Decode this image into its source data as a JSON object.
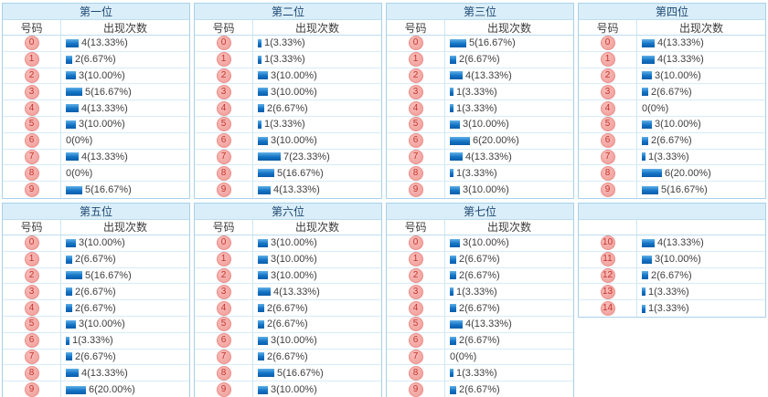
{
  "headers": {
    "number": "号码",
    "count": "出现次数"
  },
  "value_label_format": "count(percent)",
  "colors": {
    "title_band": "#daeef9",
    "title_text": "#1d4874",
    "table_border": "#a8d2ec",
    "row_line": "#d7ebf8",
    "bar_top": "#5fb0e8",
    "bar_bottom": "#0a5dab",
    "badge_bg": "#f5a9a5",
    "badge_text": "#c5322e",
    "count_text": "#3f3f3f"
  },
  "chart_data": [
    {
      "type": "bar",
      "orientation": "horizontal",
      "title": "第一位",
      "number_header": "号码",
      "count_header": "出现次数",
      "categories": [
        "0",
        "1",
        "2",
        "3",
        "4",
        "5",
        "6",
        "7",
        "8",
        "9"
      ],
      "values": [
        4,
        2,
        3,
        5,
        4,
        3,
        0,
        4,
        0,
        5
      ],
      "labels": [
        "4(13.33%)",
        "2(6.67%)",
        "3(10.00%)",
        "5(16.67%)",
        "4(13.33%)",
        "3(10.00%)",
        "0(0%)",
        "4(13.33%)",
        "0(0%)",
        "5(16.67%)"
      ]
    },
    {
      "type": "bar",
      "orientation": "horizontal",
      "title": "第二位",
      "number_header": "号码",
      "count_header": "出现次数",
      "categories": [
        "0",
        "1",
        "2",
        "3",
        "4",
        "5",
        "6",
        "7",
        "8",
        "9"
      ],
      "values": [
        1,
        1,
        3,
        3,
        2,
        1,
        3,
        7,
        5,
        4
      ],
      "labels": [
        "1(3.33%)",
        "1(3.33%)",
        "3(10.00%)",
        "3(10.00%)",
        "2(6.67%)",
        "1(3.33%)",
        "3(10.00%)",
        "7(23.33%)",
        "5(16.67%)",
        "4(13.33%)"
      ]
    },
    {
      "type": "bar",
      "orientation": "horizontal",
      "title": "第三位",
      "number_header": "号码",
      "count_header": "出现次数",
      "categories": [
        "0",
        "1",
        "2",
        "3",
        "4",
        "5",
        "6",
        "7",
        "8",
        "9"
      ],
      "values": [
        5,
        2,
        4,
        1,
        1,
        3,
        6,
        4,
        1,
        3
      ],
      "labels": [
        "5(16.67%)",
        "2(6.67%)",
        "4(13.33%)",
        "1(3.33%)",
        "1(3.33%)",
        "3(10.00%)",
        "6(20.00%)",
        "4(13.33%)",
        "1(3.33%)",
        "3(10.00%)"
      ]
    },
    {
      "type": "bar",
      "orientation": "horizontal",
      "title": "第四位",
      "number_header": "号码",
      "count_header": "出现次数",
      "categories": [
        "0",
        "1",
        "2",
        "3",
        "4",
        "5",
        "6",
        "7",
        "8",
        "9"
      ],
      "values": [
        4,
        4,
        3,
        2,
        0,
        3,
        2,
        1,
        6,
        5
      ],
      "labels": [
        "4(13.33%)",
        "4(13.33%)",
        "3(10.00%)",
        "2(6.67%)",
        "0(0%)",
        "3(10.00%)",
        "2(6.67%)",
        "1(3.33%)",
        "6(20.00%)",
        "5(16.67%)"
      ]
    },
    {
      "type": "bar",
      "orientation": "horizontal",
      "title": "第五位",
      "number_header": "号码",
      "count_header": "出现次数",
      "categories": [
        "0",
        "1",
        "2",
        "3",
        "4",
        "5",
        "6",
        "7",
        "8",
        "9"
      ],
      "values": [
        3,
        2,
        5,
        2,
        2,
        3,
        1,
        2,
        4,
        6
      ],
      "labels": [
        "3(10.00%)",
        "2(6.67%)",
        "5(16.67%)",
        "2(6.67%)",
        "2(6.67%)",
        "3(10.00%)",
        "1(3.33%)",
        "2(6.67%)",
        "4(13.33%)",
        "6(20.00%)"
      ]
    },
    {
      "type": "bar",
      "orientation": "horizontal",
      "title": "第六位",
      "number_header": "号码",
      "count_header": "出现次数",
      "categories": [
        "0",
        "1",
        "2",
        "3",
        "4",
        "5",
        "6",
        "7",
        "8",
        "9"
      ],
      "values": [
        3,
        3,
        3,
        4,
        2,
        2,
        3,
        2,
        5,
        3
      ],
      "labels": [
        "3(10.00%)",
        "3(10.00%)",
        "3(10.00%)",
        "4(13.33%)",
        "2(6.67%)",
        "2(6.67%)",
        "3(10.00%)",
        "2(6.67%)",
        "5(16.67%)",
        "3(10.00%)"
      ]
    },
    {
      "type": "bar",
      "orientation": "horizontal",
      "title": "第七位",
      "number_header": "号码",
      "count_header": "出现次数",
      "categories": [
        "0",
        "1",
        "2",
        "3",
        "4",
        "5",
        "6",
        "7",
        "8",
        "9"
      ],
      "values": [
        3,
        2,
        2,
        1,
        2,
        4,
        2,
        0,
        1,
        2
      ],
      "labels": [
        "3(10.00%)",
        "2(6.67%)",
        "2(6.67%)",
        "1(3.33%)",
        "2(6.67%)",
        "4(13.33%)",
        "2(6.67%)",
        "0(0%)",
        "1(3.33%)",
        "2(6.67%)"
      ]
    },
    {
      "type": "bar",
      "orientation": "horizontal",
      "title": "",
      "number_header": "",
      "count_header": "",
      "categories": [
        "10",
        "11",
        "12",
        "13",
        "14"
      ],
      "values": [
        4,
        3,
        2,
        1,
        1
      ],
      "labels": [
        "4(13.33%)",
        "3(10.00%)",
        "2(6.67%)",
        "1(3.33%)",
        "1(3.33%)"
      ]
    }
  ]
}
